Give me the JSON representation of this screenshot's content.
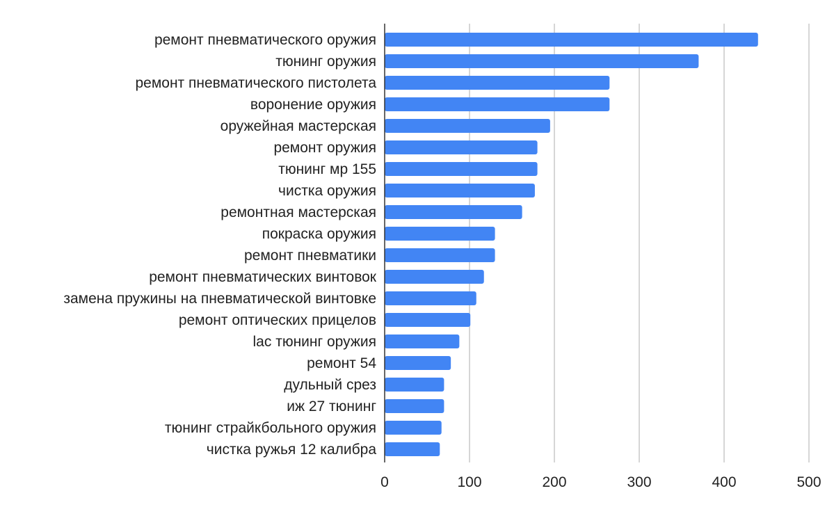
{
  "colors": {
    "bar": "#4285f4",
    "grid": "#c8c8c8",
    "axis": "#333333",
    "text": "#222222"
  },
  "chart_data": {
    "type": "bar",
    "orientation": "horizontal",
    "categories": [
      "ремонт пневматического оружия",
      "тюнинг оружия",
      "ремонт пневматического пистолета",
      "воронение оружия",
      "оружейная мастерская",
      "ремонт оружия",
      "тюнинг мр 155",
      "чистка оружия",
      "ремонтная мастерская",
      "покраска оружия",
      "ремонт пневматики",
      "ремонт пневматических винтовок",
      "замена пружины на пневматической винтовке",
      "ремонт оптических прицелов",
      "lac тюнинг оружия",
      "ремонт 54",
      "дульный срез",
      "иж 27 тюнинг",
      "тюнинг страйкбольного оружия",
      "чистка ружья 12 калибра"
    ],
    "values": [
      440,
      370,
      265,
      265,
      195,
      180,
      180,
      177,
      162,
      130,
      130,
      117,
      108,
      101,
      88,
      78,
      70,
      70,
      67,
      65
    ],
    "xlim": [
      0,
      500
    ],
    "xticks": [
      "0",
      "100",
      "200",
      "300",
      "400",
      "500"
    ],
    "title": "",
    "xlabel": "",
    "ylabel": "",
    "grid": "vertical",
    "legend": "none"
  }
}
